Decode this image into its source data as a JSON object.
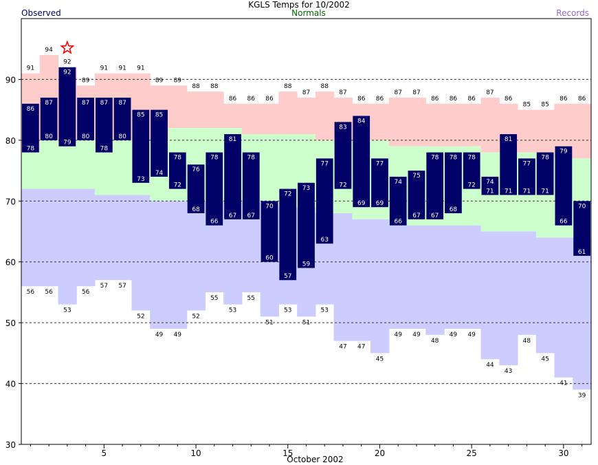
{
  "header": {
    "title": "KGLS Temps for 10/2002",
    "observed_label": "Observed",
    "normals_label": "Normals",
    "records_label": "Records"
  },
  "chart_data": {
    "type": "bar",
    "title": "KGLS Temps for 10/2002",
    "xlabel": "October 2002",
    "ylabel": "",
    "x_ticks": [
      5,
      10,
      15,
      20,
      25,
      30
    ],
    "y_ticks": [
      30,
      40,
      50,
      60,
      70,
      80,
      90
    ],
    "xlim": [
      0.5,
      31.5
    ],
    "ylim": [
      30,
      100
    ],
    "grid": "dashed horizontal at 40-90",
    "colors": {
      "observed": "#000066",
      "record_band": "#ffcccc",
      "normal_band": "#ccffcc",
      "low_band": "#ccccff",
      "record_marker": "#ff0000"
    },
    "days": [
      1,
      2,
      3,
      4,
      5,
      6,
      7,
      8,
      9,
      10,
      11,
      12,
      13,
      14,
      15,
      16,
      17,
      18,
      19,
      20,
      21,
      22,
      23,
      24,
      25,
      26,
      27,
      28,
      29,
      30,
      31
    ],
    "observed_high": [
      86,
      87,
      92,
      87,
      87,
      87,
      85,
      85,
      78,
      76,
      78,
      81,
      78,
      70,
      72,
      73,
      77,
      83,
      84,
      77,
      74,
      75,
      78,
      78,
      78,
      74,
      81,
      77,
      78,
      79,
      70
    ],
    "observed_low": [
      78,
      80,
      79,
      80,
      78,
      80,
      73,
      74,
      72,
      68,
      66,
      67,
      67,
      60,
      57,
      59,
      63,
      72,
      69,
      69,
      66,
      67,
      67,
      68,
      72,
      71,
      71,
      71,
      71,
      66,
      61
    ],
    "normal_high": [
      78,
      80,
      80,
      80,
      80,
      80,
      80,
      80,
      82,
      82,
      82,
      82,
      81,
      81,
      81,
      81,
      80,
      80,
      80,
      80,
      79,
      79,
      79,
      79,
      79,
      78,
      78,
      78,
      78,
      77,
      77
    ],
    "normal_low": [
      72,
      72,
      72,
      72,
      71,
      71,
      71,
      70,
      70,
      70,
      70,
      70,
      70,
      70,
      69,
      69,
      68,
      68,
      67,
      67,
      66,
      66,
      66,
      66,
      66,
      65,
      65,
      65,
      64,
      64,
      64
    ],
    "record_high": [
      91,
      94,
      92,
      89,
      91,
      91,
      91,
      89,
      89,
      88,
      88,
      86,
      86,
      86,
      88,
      87,
      88,
      87,
      86,
      86,
      87,
      87,
      86,
      86,
      86,
      87,
      86,
      85,
      85,
      86,
      86
    ],
    "record_low": [
      56,
      56,
      53,
      56,
      57,
      57,
      52,
      49,
      49,
      52,
      55,
      53,
      55,
      51,
      53,
      51,
      53,
      47,
      47,
      45,
      49,
      49,
      48,
      49,
      49,
      44,
      43,
      48,
      45,
      41,
      39
    ],
    "record_set_days": [
      3
    ]
  }
}
